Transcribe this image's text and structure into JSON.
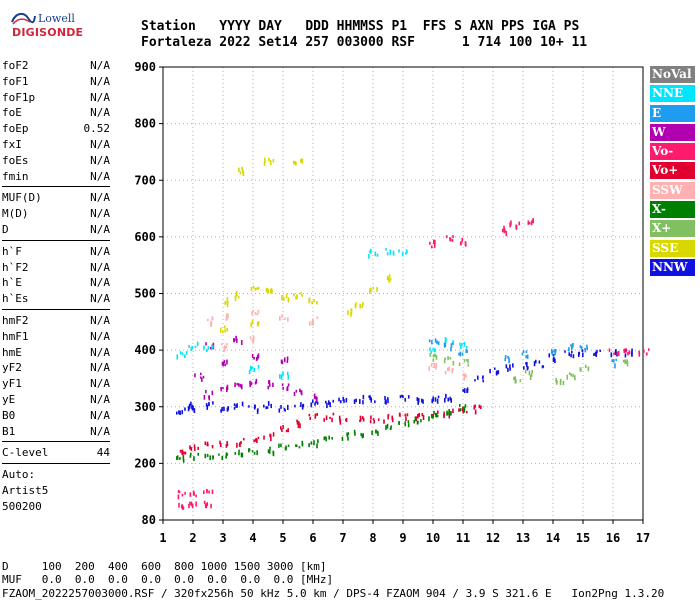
{
  "logo": {
    "top": "Lowell",
    "bottom": "DIGISONDE"
  },
  "header": {
    "labels": "Station   YYYY DAY   DDD HHMMSS P1  FFS S AXN PPS IGA PS",
    "values": "Fortaleza 2022 Set14 257 003000 RSF      1 714 100 10+ 11"
  },
  "params": {
    "group1": [
      {
        "name": "foF2",
        "value": "N/A"
      },
      {
        "name": "foF1",
        "value": "N/A"
      },
      {
        "name": "foF1p",
        "value": "N/A"
      },
      {
        "name": "foE",
        "value": "N/A"
      },
      {
        "name": "foEp",
        "value": "0.52"
      },
      {
        "name": "fxI",
        "value": "N/A"
      },
      {
        "name": "foEs",
        "value": "N/A"
      },
      {
        "name": "fmin",
        "value": "N/A"
      }
    ],
    "group2": [
      {
        "name": "MUF(D)",
        "value": "N/A"
      },
      {
        "name": "M(D)",
        "value": "N/A"
      },
      {
        "name": "D",
        "value": "N/A"
      }
    ],
    "group3": [
      {
        "name": "h`F",
        "value": "N/A"
      },
      {
        "name": "h`F2",
        "value": "N/A"
      },
      {
        "name": "h`E",
        "value": "N/A"
      },
      {
        "name": "h`Es",
        "value": "N/A"
      }
    ],
    "group4": [
      {
        "name": "hmF2",
        "value": "N/A"
      },
      {
        "name": "hmF1",
        "value": "N/A"
      },
      {
        "name": "hmE",
        "value": "N/A"
      },
      {
        "name": "yF2",
        "value": "N/A"
      },
      {
        "name": "yF1",
        "value": "N/A"
      },
      {
        "name": "yE",
        "value": "N/A"
      },
      {
        "name": "B0",
        "value": "N/A"
      },
      {
        "name": "B1",
        "value": "N/A"
      }
    ],
    "clevel": {
      "name": "C-level",
      "value": "44"
    },
    "auto": [
      "Auto:",
      "Artist5",
      "500200"
    ]
  },
  "legend": [
    {
      "label": "NoVal",
      "color": "#808080"
    },
    {
      "label": "NNE",
      "color": "#00e5ff"
    },
    {
      "label": "E",
      "color": "#1e9cf0"
    },
    {
      "label": "W",
      "color": "#b000b0"
    },
    {
      "label": "Vo-",
      "color": "#ff1a6e"
    },
    {
      "label": "Vo+",
      "color": "#e00030"
    },
    {
      "label": "SSW",
      "color": "#ffb0b0"
    },
    {
      "label": "X-",
      "color": "#008000"
    },
    {
      "label": "X+",
      "color": "#80c060"
    },
    {
      "label": "SSE",
      "color": "#d8d800"
    },
    {
      "label": "NNW",
      "color": "#1010e0"
    }
  ],
  "footer": {
    "d_row": "D     100  200  400  600  800 1000 1500 3000 [km]",
    "muf_row": "MUF   0.0  0.0  0.0  0.0  0.0  0.0  0.0  0.0 [MHz]",
    "info": "FZAOM_2022257003000.RSF / 320fx256h 50 kHz 5.0 km / DPS-4 FZAOM 904 / 3.9 S 321.6 E   Ion2Png 1.3.20"
  },
  "chart_data": {
    "type": "scatter",
    "x_ticks": [
      "1",
      "2",
      "3",
      "4",
      "5",
      "6",
      "7",
      "8",
      "9",
      "10",
      "11",
      "12",
      "13",
      "14",
      "15",
      "16",
      "17"
    ],
    "y_ticks": [
      "80",
      "200",
      "300",
      "400",
      "500",
      "600",
      "700",
      "800",
      "900"
    ],
    "xlim": [
      1,
      17
    ],
    "ylim_ticks": [
      80,
      900
    ],
    "grid": true,
    "legend_position": "right",
    "traces": [
      {
        "name": "NNW",
        "points": [
          [
            1.6,
            296
          ],
          [
            1.8,
            305
          ],
          [
            2,
            300
          ],
          [
            2.5,
            305
          ],
          [
            3,
            300
          ],
          [
            3.5,
            305
          ],
          [
            4,
            300
          ],
          [
            4.5,
            305
          ],
          [
            5,
            300
          ],
          [
            5.5,
            308
          ],
          [
            6,
            310
          ],
          [
            6.5,
            312
          ],
          [
            7,
            314
          ],
          [
            7.5,
            316
          ],
          [
            8,
            316
          ],
          [
            8.5,
            316
          ],
          [
            9,
            316
          ],
          [
            9.5,
            316
          ],
          [
            10,
            318
          ],
          [
            10.5,
            320
          ],
          [
            11,
            330
          ],
          [
            11.5,
            350
          ],
          [
            12,
            365
          ],
          [
            12.5,
            372
          ],
          [
            13,
            375
          ],
          [
            13.5,
            378
          ],
          [
            14,
            390
          ],
          [
            14.5,
            395
          ],
          [
            15,
            400
          ],
          [
            15.5,
            400
          ],
          [
            16,
            400
          ],
          [
            16.5,
            398
          ]
        ]
      },
      {
        "name": "Vo+",
        "points": [
          [
            1.6,
            224
          ],
          [
            2,
            230
          ],
          [
            2.5,
            234
          ],
          [
            3,
            237
          ],
          [
            3.5,
            240
          ],
          [
            4,
            245
          ],
          [
            4.5,
            253
          ],
          [
            5,
            263
          ],
          [
            5.5,
            275
          ],
          [
            6,
            285
          ],
          [
            6.5,
            285
          ],
          [
            7,
            282
          ],
          [
            7.5,
            280
          ],
          [
            8,
            280
          ],
          [
            8.5,
            282
          ],
          [
            9,
            285
          ],
          [
            9.5,
            288
          ],
          [
            10,
            290
          ],
          [
            10.5,
            292
          ],
          [
            11,
            296
          ],
          [
            11.5,
            300
          ]
        ]
      },
      {
        "name": "X-",
        "points": [
          [
            1.6,
            210
          ],
          [
            2,
            214
          ],
          [
            2.5,
            216
          ],
          [
            3,
            218
          ],
          [
            3.5,
            220
          ],
          [
            4,
            222
          ],
          [
            4.5,
            225
          ],
          [
            5,
            230
          ],
          [
            5.5,
            235
          ],
          [
            6,
            240
          ],
          [
            6.5,
            245
          ],
          [
            7,
            250
          ],
          [
            7.5,
            255
          ],
          [
            8,
            260
          ],
          [
            8.5,
            266
          ],
          [
            9,
            272
          ],
          [
            9.5,
            280
          ],
          [
            10,
            288
          ],
          [
            10.5,
            295
          ],
          [
            11,
            300
          ]
        ]
      },
      {
        "name": "W",
        "points": [
          [
            2.5,
            325
          ],
          [
            3,
            335
          ],
          [
            3.5,
            340
          ],
          [
            4,
            345
          ],
          [
            4.5,
            342
          ],
          [
            5,
            338
          ],
          [
            5.5,
            330
          ],
          [
            6,
            322
          ],
          [
            2.2,
            355
          ],
          [
            3,
            380
          ],
          [
            4,
            390
          ],
          [
            5,
            385
          ],
          [
            2.5,
            410
          ],
          [
            3.5,
            420
          ]
        ]
      },
      {
        "name": "NNE",
        "points": [
          [
            1.6,
            395
          ],
          [
            2,
            410
          ],
          [
            2.5,
            405
          ],
          [
            4,
            370
          ],
          [
            5,
            360
          ],
          [
            8,
            575
          ],
          [
            8.5,
            575
          ],
          [
            9,
            575
          ],
          [
            10,
            400
          ],
          [
            10.5,
            420
          ],
          [
            11,
            410
          ]
        ]
      },
      {
        "name": "SSE",
        "points": [
          [
            3,
            490
          ],
          [
            3.5,
            500
          ],
          [
            4,
            510
          ],
          [
            4.5,
            505
          ],
          [
            5,
            495
          ],
          [
            5.5,
            500
          ],
          [
            6,
            490
          ],
          [
            3,
            440
          ],
          [
            4,
            450
          ],
          [
            7.2,
            470
          ],
          [
            7.5,
            485
          ],
          [
            8,
            510
          ],
          [
            8.4,
            530
          ],
          [
            3.5,
            720
          ],
          [
            4.5,
            735
          ],
          [
            5.5,
            735
          ]
        ]
      },
      {
        "name": "SSW",
        "points": [
          [
            2.5,
            455
          ],
          [
            3,
            460
          ],
          [
            4,
            470
          ],
          [
            5,
            460
          ],
          [
            6,
            455
          ],
          [
            3,
            410
          ],
          [
            4,
            420
          ],
          [
            10,
            375
          ],
          [
            10.5,
            368
          ],
          [
            11,
            360
          ]
        ]
      },
      {
        "name": "E",
        "points": [
          [
            10,
            420
          ],
          [
            10.5,
            410
          ],
          [
            11,
            400
          ],
          [
            12.5,
            390
          ],
          [
            13,
            395
          ],
          [
            14,
            400
          ],
          [
            14.5,
            410
          ],
          [
            15,
            405
          ],
          [
            16,
            380
          ]
        ]
      },
      {
        "name": "X+",
        "points": [
          [
            10,
            390
          ],
          [
            10.5,
            385
          ],
          [
            11,
            380
          ],
          [
            12.8,
            350
          ],
          [
            13.2,
            360
          ],
          [
            14.2,
            350
          ],
          [
            14.6,
            360
          ],
          [
            15,
            370
          ],
          [
            16.3,
            380
          ]
        ]
      },
      {
        "name": "Vo-",
        "points": [
          [
            1.6,
            138
          ],
          [
            2,
            140
          ],
          [
            2.5,
            140
          ],
          [
            1.6,
            112
          ],
          [
            2,
            115
          ],
          [
            2.5,
            115
          ],
          [
            16,
            398
          ],
          [
            16.5,
            400
          ],
          [
            17,
            400
          ],
          [
            10,
            590
          ],
          [
            10.5,
            600
          ],
          [
            11,
            595
          ],
          [
            12.3,
            615
          ],
          [
            12.7,
            625
          ],
          [
            13.3,
            630
          ]
        ]
      }
    ]
  }
}
